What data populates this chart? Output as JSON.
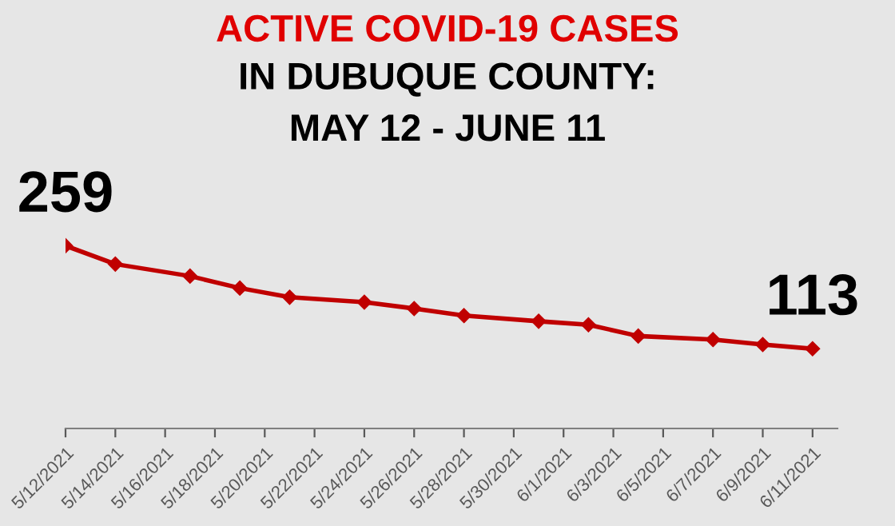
{
  "chart_data": {
    "type": "line",
    "title": "ACTIVE COVID-19 CASES",
    "subtitle": "IN DUBUQUE COUNTY:\nMAY 12 - JUNE 11",
    "marker": "diamond",
    "line_style": "solid",
    "grid": false,
    "legend": false,
    "tick_labels": "x",
    "x": [
      "2021-05-12",
      "2021-05-14",
      "2021-05-17",
      "2021-05-19",
      "2021-05-21",
      "2021-05-24",
      "2021-05-26",
      "2021-05-28",
      "2021-05-31",
      "2021-06-02",
      "2021-06-04",
      "2021-06-07",
      "2021-06-09",
      "2021-06-11"
    ],
    "xlim": [
      "2021-05-12",
      "2021-06-12"
    ],
    "xticks": [
      {
        "value": "2021-05-12",
        "label": "5/12/2021"
      },
      {
        "value": "2021-05-14",
        "label": "5/14/2021"
      },
      {
        "value": "2021-05-16",
        "label": "5/16/2021"
      },
      {
        "value": "2021-05-18",
        "label": "5/18/2021"
      },
      {
        "value": "2021-05-20",
        "label": "5/20/2021"
      },
      {
        "value": "2021-05-22",
        "label": "5/22/2021"
      },
      {
        "value": "2021-05-24",
        "label": "5/24/2021"
      },
      {
        "value": "2021-05-26",
        "label": "5/26/2021"
      },
      {
        "value": "2021-05-28",
        "label": "5/28/2021"
      },
      {
        "value": "2021-05-30",
        "label": "5/30/2021"
      },
      {
        "value": "2021-06-01",
        "label": "6/1/2021"
      },
      {
        "value": "2021-06-03",
        "label": "6/3/2021"
      },
      {
        "value": "2021-06-05",
        "label": "6/5/2021"
      },
      {
        "value": "2021-06-07",
        "label": "6/7/2021"
      },
      {
        "value": "2021-06-09",
        "label": "6/9/2021"
      },
      {
        "value": "2021-06-11",
        "label": "6/11/2021"
      }
    ],
    "series": [
      {
        "color": "#c00000",
        "values": [
          259,
          233,
          216,
          199,
          186,
          179,
          170,
          160,
          152,
          147,
          131,
          126,
          119,
          113
        ],
        "value_labels": [
          "259",
          null,
          null,
          null,
          null,
          null,
          null,
          null,
          null,
          null,
          null,
          null,
          null,
          "113"
        ]
      }
    ]
  }
}
